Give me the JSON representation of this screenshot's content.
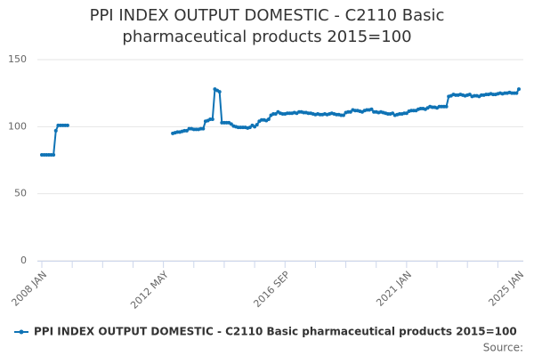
{
  "chart_data": {
    "type": "line",
    "title": "PPI INDEX OUTPUT DOMESTIC - C2110 Basic pharmaceutical products 2015=100",
    "source": "Source:",
    "categories": [
      "2008 JAN",
      null,
      null,
      null,
      null,
      null,
      null,
      null,
      null,
      null,
      null,
      null,
      null,
      null,
      null,
      null,
      null,
      null,
      null,
      null,
      null,
      null,
      null,
      null,
      null,
      null,
      null,
      null,
      null,
      null,
      null,
      null,
      null,
      null,
      null,
      null,
      null,
      null,
      null,
      null,
      null,
      null,
      null,
      null,
      null,
      null,
      null,
      null,
      null,
      null,
      null,
      null,
      "2012 MAY",
      null,
      null,
      null,
      null,
      null,
      null,
      null,
      null,
      null,
      null,
      null,
      null,
      null,
      null,
      null,
      null,
      null,
      null,
      null,
      null,
      null,
      null,
      null,
      null,
      null,
      null,
      null,
      null,
      null,
      null,
      null,
      null,
      null,
      null,
      null,
      null,
      null,
      null,
      null,
      null,
      null,
      null,
      null,
      null,
      null,
      null,
      null,
      null,
      null,
      null,
      null,
      "2016 SEP",
      null,
      null,
      null,
      null,
      null,
      null,
      null,
      null,
      null,
      null,
      null,
      null,
      null,
      null,
      null,
      null,
      null,
      null,
      null,
      null,
      null,
      null,
      null,
      null,
      null,
      null,
      null,
      null,
      null,
      null,
      null,
      null,
      null,
      null,
      null,
      null,
      null,
      null,
      null,
      null,
      null,
      null,
      null,
      null,
      null,
      null,
      null,
      null,
      null,
      null,
      null,
      "2021 JAN",
      null,
      null,
      null,
      null,
      null,
      null,
      null,
      null,
      null,
      null,
      null,
      null,
      null,
      null,
      null,
      null,
      null,
      null,
      null,
      null,
      null,
      null,
      null,
      null,
      null,
      null,
      null,
      null,
      null,
      null,
      null,
      null,
      null,
      null,
      null,
      null,
      null,
      null,
      null,
      null,
      null,
      null,
      null,
      null,
      null,
      null,
      null,
      "2025 JAN"
    ],
    "series": [
      {
        "name": "PPI INDEX OUTPUT DOMESTIC - C2110 Basic pharmaceutical products 2015=100",
        "color": "#0f73b5",
        "values": [
          79,
          79,
          79,
          79,
          79,
          79,
          97,
          101,
          101,
          101,
          101,
          101,
          null,
          null,
          null,
          null,
          null,
          null,
          null,
          null,
          null,
          null,
          null,
          null,
          null,
          null,
          null,
          null,
          null,
          null,
          null,
          null,
          null,
          null,
          null,
          null,
          null,
          null,
          null,
          null,
          null,
          null,
          null,
          null,
          null,
          null,
          null,
          null,
          null,
          null,
          null,
          null,
          null,
          null,
          null,
          null,
          95,
          95.5,
          96,
          96,
          96.5,
          97,
          97,
          98.5,
          98.5,
          98,
          98,
          98,
          98.5,
          98.5,
          104,
          104.5,
          105.5,
          105.5,
          128,
          127,
          126,
          103,
          103,
          103,
          103,
          102,
          100.5,
          100,
          99.5,
          99.5,
          99.5,
          99.5,
          99,
          99.5,
          101,
          100,
          101.5,
          104,
          105,
          105,
          104.5,
          105.5,
          108.5,
          109.5,
          109.5,
          111,
          110,
          109.5,
          109.5,
          110,
          110,
          110,
          110.5,
          110,
          111,
          111,
          110.5,
          110.5,
          110,
          110,
          109.5,
          109,
          109.5,
          109,
          109,
          109.5,
          109,
          109.5,
          110,
          109.5,
          109,
          109,
          108.5,
          108.5,
          110.5,
          111,
          111,
          112.5,
          112,
          112,
          111.5,
          111,
          112,
          112.5,
          112.5,
          113,
          111,
          111,
          110.5,
          111,
          110.5,
          110,
          109.5,
          109.5,
          110,
          108.5,
          109,
          109.5,
          109.5,
          110,
          110,
          111.5,
          112,
          112,
          112,
          113,
          113.5,
          113.5,
          113,
          114,
          115,
          114.5,
          114.5,
          114,
          115,
          115,
          115,
          115,
          122.5,
          123,
          124,
          123.5,
          123.5,
          124,
          123.5,
          123,
          123.5,
          124,
          122.5,
          123,
          123,
          122.5,
          123.5,
          123.5,
          124,
          124,
          124.5,
          124,
          124,
          124.5,
          125,
          124.5,
          125,
          125,
          125.5,
          125,
          125,
          125,
          128
        ]
      }
    ],
    "ylim": [
      0,
      150
    ],
    "yticks": [
      0,
      50,
      100,
      150
    ],
    "grid": true
  }
}
